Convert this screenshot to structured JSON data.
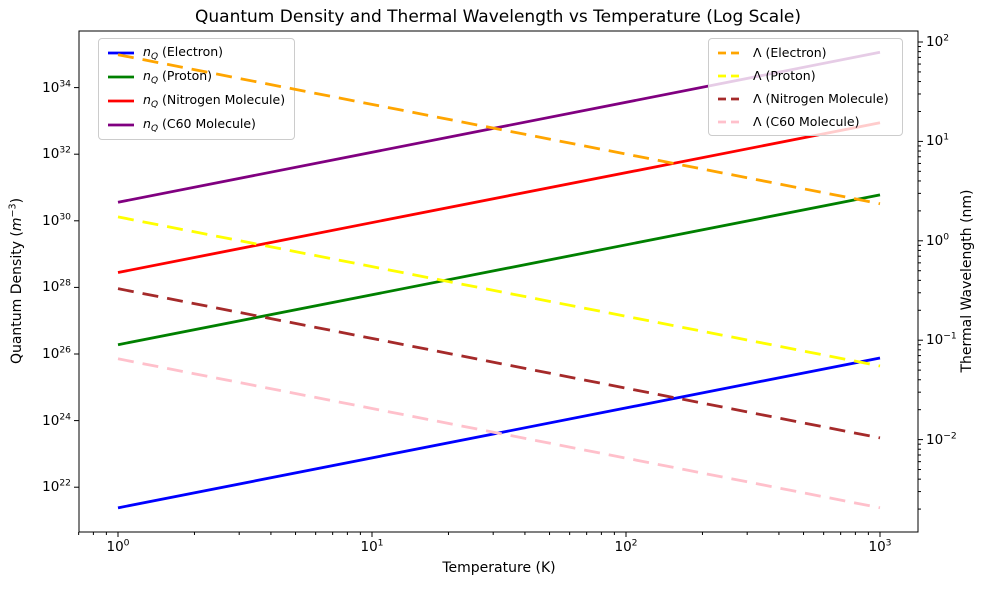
{
  "chart_data": {
    "type": "line",
    "title": "Quantum Density and Thermal Wavelength vs Temperature (Log Scale)",
    "xlabel": "Temperature (K)",
    "ylabel_left": {
      "text": "Quantum Density",
      "unit_var": "m",
      "unit_exp": "−3"
    },
    "ylabel_right": "Thermal Wavelength (nm)",
    "x_scale": "log",
    "y_scale_left": "log",
    "y_scale_right": "log",
    "grid": false,
    "x": [
      1,
      1000
    ],
    "xlim": [
      0.7,
      1400
    ],
    "ylim_left": [
      4.5e+20,
      5e+35
    ],
    "ylim_right": [
      0.00125,
      128
    ],
    "tick_base": "10",
    "x_tick_exponents": [
      0,
      1,
      2,
      3
    ],
    "left_tick_exponents": [
      22,
      24,
      26,
      28,
      30,
      32,
      34
    ],
    "right_tick_exponents": [
      2,
      1,
      0,
      -1,
      -2
    ],
    "symbols": {
      "density_main": "n",
      "density_sub": "Q",
      "lambda": "Λ"
    },
    "density_series": [
      {
        "name": "Electron",
        "color": "#0000ff",
        "style": "solid",
        "values": [
          2.4e+21,
          7.6e+25
        ]
      },
      {
        "name": "Proton",
        "color": "#008000",
        "style": "solid",
        "values": [
          1.9e+26,
          6e+30
        ]
      },
      {
        "name": "Nitrogen Molecule",
        "color": "#ff0000",
        "style": "solid",
        "values": [
          2.8e+28,
          8.8e+32
        ]
      },
      {
        "name": "C60 Molecule",
        "color": "#800080",
        "style": "solid",
        "values": [
          3.6e+30,
          1.15e+35
        ]
      }
    ],
    "wavelength_series": [
      {
        "name": "Electron",
        "color": "#ffa500",
        "style": "dashed",
        "values": [
          74.5,
          2.36
        ]
      },
      {
        "name": "Proton",
        "color": "#ffff00",
        "style": "dashed",
        "values": [
          1.74,
          0.055
        ]
      },
      {
        "name": "Nitrogen Molecule",
        "color": "#a52a2a",
        "style": "dashed",
        "values": [
          0.33,
          0.0104
        ]
      },
      {
        "name": "C60 Molecule",
        "color": "#ffc0cb",
        "style": "dashed",
        "values": [
          0.065,
          0.00206
        ]
      }
    ],
    "legend_left_position": "upper left",
    "legend_right_position": "upper right"
  }
}
